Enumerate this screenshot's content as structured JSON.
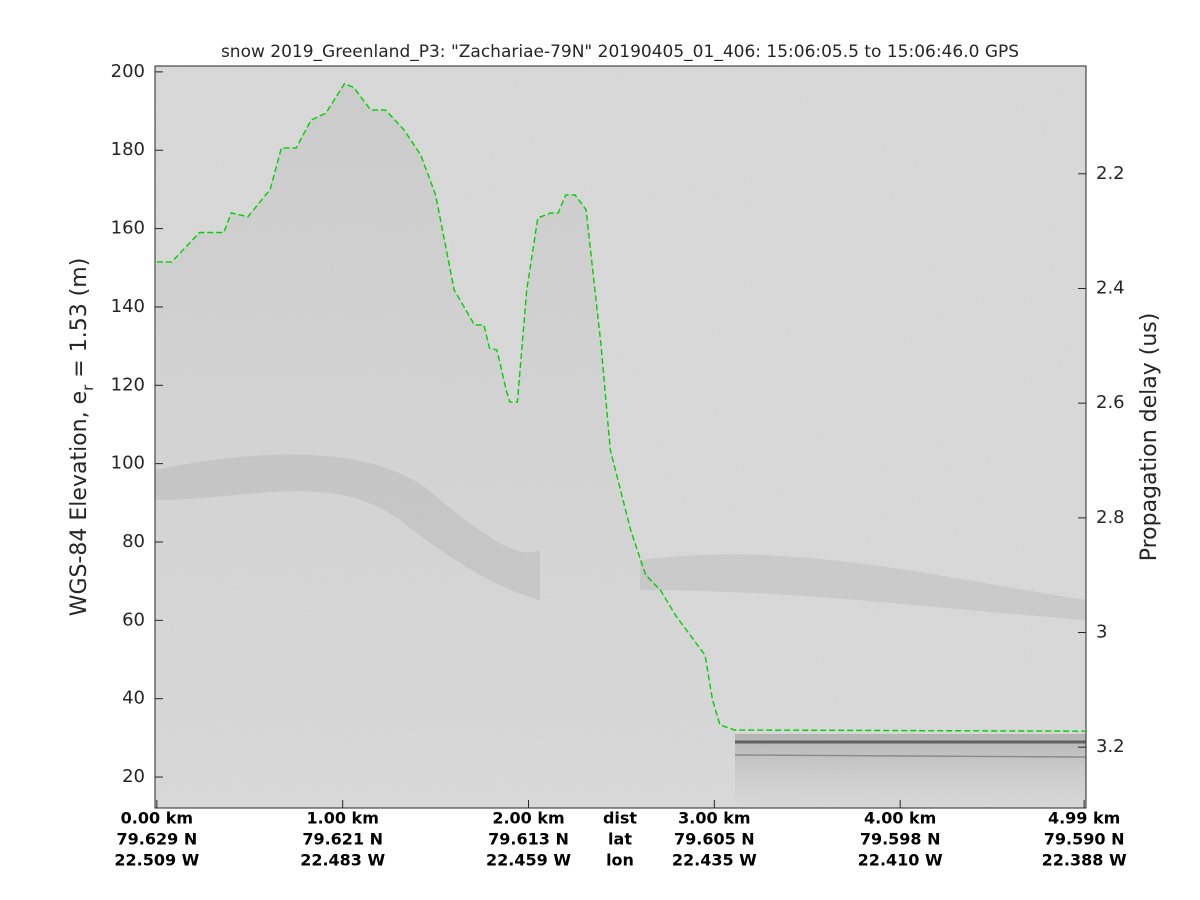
{
  "chart_data": {
    "type": "echogram",
    "title": "snow 2019_Greenland_P3: \"Zachariae-79N\"  20190405_01_406: 15:06:05.5 to 15:06:46.0 GPS",
    "ylabel": {
      "main": "WGS-84 Elevation, e",
      "sub": "r",
      "rest": " = 1.53 (m)"
    },
    "y2label": "Propagation delay (us)",
    "x_row_labels": [
      "dist",
      "lat",
      "lon"
    ],
    "xlim": [
      -0.01,
      5.0
    ],
    "xticks": [
      {
        "value": 0,
        "label": "0.00 km"
      },
      {
        "value": 1,
        "label": "1.00 km"
      },
      {
        "value": 2,
        "label": "2.00 km"
      },
      {
        "value": 3,
        "label": "3.00 km"
      },
      {
        "value": 4,
        "label": "4.00 km"
      },
      {
        "value": 4.99,
        "label": "4.99 km"
      }
    ],
    "lat_labels": [
      "79.629 N",
      "79.621 N",
      "79.613 N",
      "79.605 N",
      "79.598 N",
      "79.590 N"
    ],
    "lon_labels": [
      "22.509 W",
      "22.483 W",
      "22.459 W",
      "22.435 W",
      "22.410 W",
      "22.388 W"
    ],
    "ylim": [
      12.1,
      201.5
    ],
    "yticks": [
      20,
      40,
      60,
      80,
      100,
      120,
      140,
      160,
      180,
      200
    ],
    "y2lim": [
      3.306,
      2.012
    ],
    "y2ticks": [
      2.2,
      2.4,
      2.6,
      2.8,
      3,
      3.2
    ],
    "color": "#00d000",
    "dashed": true,
    "x": [
      0.0,
      0.08,
      0.23,
      0.36,
      0.4,
      0.49,
      0.61,
      0.67,
      0.75,
      0.83,
      0.91,
      1.01,
      1.06,
      1.15,
      1.23,
      1.33,
      1.42,
      1.5,
      1.6,
      1.71,
      1.76,
      1.79,
      1.83,
      1.88,
      1.9,
      1.94,
      1.99,
      2.05,
      2.12,
      2.16,
      2.2,
      2.25,
      2.31,
      2.39,
      2.44,
      2.55,
      2.63,
      2.71,
      2.79,
      2.87,
      2.95,
      2.99,
      3.03,
      3.11,
      5.0
    ],
    "values": [
      151.5,
      151.5,
      159,
      159,
      164,
      163,
      170,
      180.6,
      180.6,
      187.7,
      189.5,
      197,
      196,
      190.3,
      190.3,
      185.2,
      178.8,
      168.6,
      144.3,
      135.4,
      135.4,
      129.5,
      129,
      118.8,
      115.7,
      115.7,
      144.3,
      162.7,
      164,
      164,
      168.6,
      168.6,
      164.8,
      130.3,
      103.5,
      83,
      71.6,
      67.7,
      61.4,
      56.2,
      51.1,
      39.7,
      33.3,
      32,
      31.7
    ]
  }
}
